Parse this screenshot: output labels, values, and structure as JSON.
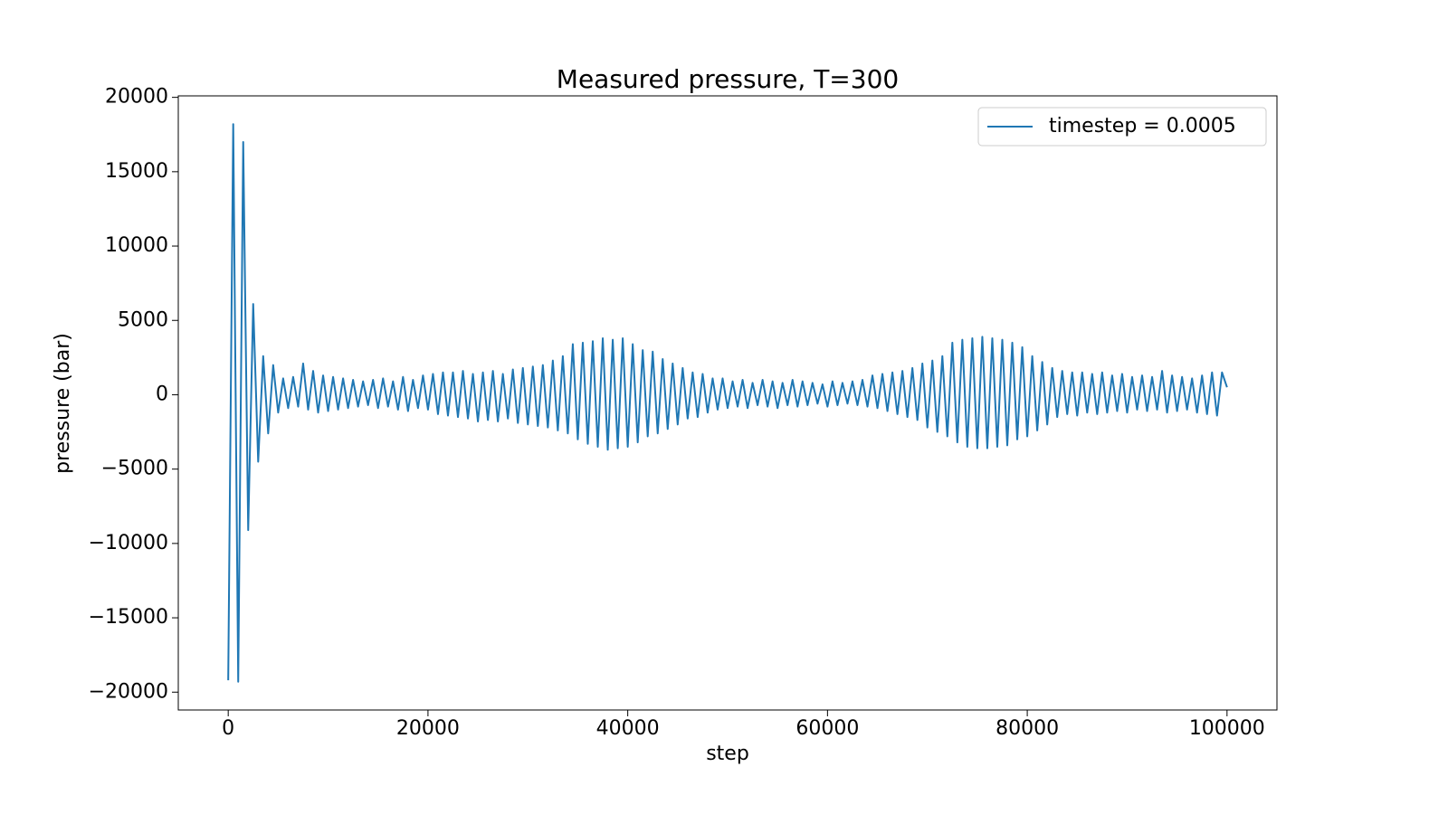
{
  "chart_data": {
    "type": "line",
    "title": "Measured pressure, T=300",
    "xlabel": "step",
    "ylabel": "pressure (bar)",
    "x": [
      0,
      500,
      1000,
      1500,
      2000,
      2500,
      3000,
      3500,
      4000,
      4500,
      5000,
      5500,
      6000,
      6500,
      7000,
      7500,
      8000,
      8500,
      9000,
      9500,
      10000,
      10500,
      11000,
      11500,
      12000,
      12500,
      13000,
      13500,
      14000,
      14500,
      15000,
      15500,
      16000,
      16500,
      17000,
      17500,
      18000,
      18500,
      19000,
      19500,
      20000,
      20500,
      21000,
      21500,
      22000,
      22500,
      23000,
      23500,
      24000,
      24500,
      25000,
      25500,
      26000,
      26500,
      27000,
      27500,
      28000,
      28500,
      29000,
      29500,
      30000,
      30500,
      31000,
      31500,
      32000,
      32500,
      33000,
      33500,
      34000,
      34500,
      35000,
      35500,
      36000,
      36500,
      37000,
      37500,
      38000,
      38500,
      39000,
      39500,
      40000,
      40500,
      41000,
      41500,
      42000,
      42500,
      43000,
      43500,
      44000,
      44500,
      45000,
      45500,
      46000,
      46500,
      47000,
      47500,
      48000,
      48500,
      49000,
      49500,
      50000,
      50500,
      51000,
      51500,
      52000,
      52500,
      53000,
      53500,
      54000,
      54500,
      55000,
      55500,
      56000,
      56500,
      57000,
      57500,
      58000,
      58500,
      59000,
      59500,
      60000,
      60500,
      61000,
      61500,
      62000,
      62500,
      63000,
      63500,
      64000,
      64500,
      65000,
      65500,
      66000,
      66500,
      67000,
      67500,
      68000,
      68500,
      69000,
      69500,
      70000,
      70500,
      71000,
      71500,
      72000,
      72500,
      73000,
      73500,
      74000,
      74500,
      75000,
      75500,
      76000,
      76500,
      77000,
      77500,
      78000,
      78500,
      79000,
      79500,
      80000,
      80500,
      81000,
      81500,
      82000,
      82500,
      83000,
      83500,
      84000,
      84500,
      85000,
      85500,
      86000,
      86500,
      87000,
      87500,
      88000,
      88500,
      89000,
      89500,
      90000,
      90500,
      91000,
      91500,
      92000,
      92500,
      93000,
      93500,
      94000,
      94500,
      95000,
      95500,
      96000,
      96500,
      97000,
      97500,
      98000,
      98500,
      99000,
      99500,
      100000
    ],
    "series": [
      {
        "name": "timestep = 0.0005",
        "color": "#1f77b4",
        "values": [
          -19200,
          18200,
          -19300,
          17000,
          -9100,
          6100,
          -4500,
          2600,
          -2600,
          2000,
          -1200,
          1100,
          -900,
          1200,
          -800,
          2100,
          -1000,
          1600,
          -1200,
          1300,
          -1100,
          1200,
          -1000,
          1100,
          -900,
          1000,
          -800,
          900,
          -700,
          1000,
          -900,
          1100,
          -800,
          900,
          -1000,
          1200,
          -1100,
          1000,
          -900,
          1300,
          -1000,
          1400,
          -1300,
          1500,
          -1400,
          1500,
          -1500,
          1600,
          -1600,
          1400,
          -1800,
          1500,
          -1700,
          1600,
          -1800,
          1400,
          -1600,
          1700,
          -1900,
          1800,
          -2000,
          1900,
          -2100,
          2000,
          -2200,
          2300,
          -2400,
          2600,
          -2600,
          3400,
          -3000,
          3500,
          -3300,
          3600,
          -3500,
          3800,
          -3700,
          3700,
          -3600,
          3800,
          -3500,
          3400,
          -3200,
          3000,
          -2800,
          2900,
          -2600,
          2400,
          -2300,
          2100,
          -2000,
          1800,
          -1600,
          1500,
          -1500,
          1400,
          -1200,
          1100,
          -1000,
          1100,
          -900,
          900,
          -800,
          1000,
          -900,
          800,
          -700,
          1000,
          -800,
          900,
          -900,
          800,
          -700,
          1000,
          -800,
          900,
          -700,
          800,
          -600,
          700,
          -800,
          900,
          -700,
          800,
          -600,
          900,
          -700,
          1000,
          -800,
          1300,
          -900,
          1400,
          -1100,
          1500,
          -1300,
          1600,
          -1500,
          1800,
          -1700,
          2100,
          -2200,
          2300,
          -2500,
          2600,
          -2800,
          3500,
          -3200,
          3700,
          -3500,
          3800,
          -3600,
          3900,
          -3600,
          3800,
          -3500,
          3700,
          -3400,
          3500,
          -3000,
          3200,
          -2800,
          2600,
          -2400,
          2200,
          -2000,
          1800,
          -1500,
          1600,
          -1300,
          1500,
          -1400,
          1500,
          -1200,
          1400,
          -1300,
          1500,
          -1200,
          1300,
          -1100,
          1400,
          -1200,
          1200,
          -1000,
          1300,
          -1100,
          1200,
          -1000,
          1600,
          -1200,
          1300,
          -1100,
          1200,
          -1000,
          1100,
          -1200,
          1300,
          -1300,
          1500,
          -1400,
          1500,
          500
        ]
      }
    ],
    "xlim": [
      -5000,
      105000
    ],
    "ylim": [
      -21200,
      20100
    ],
    "xticks": [
      0,
      20000,
      40000,
      60000,
      80000,
      100000
    ],
    "yticks": [
      {
        "value": -20000,
        "label": "−20000"
      },
      {
        "value": -15000,
        "label": "−15000"
      },
      {
        "value": -10000,
        "label": "−10000"
      },
      {
        "value": -5000,
        "label": "−5000"
      },
      0,
      5000,
      10000,
      15000,
      20000
    ],
    "legend": "upper right"
  }
}
